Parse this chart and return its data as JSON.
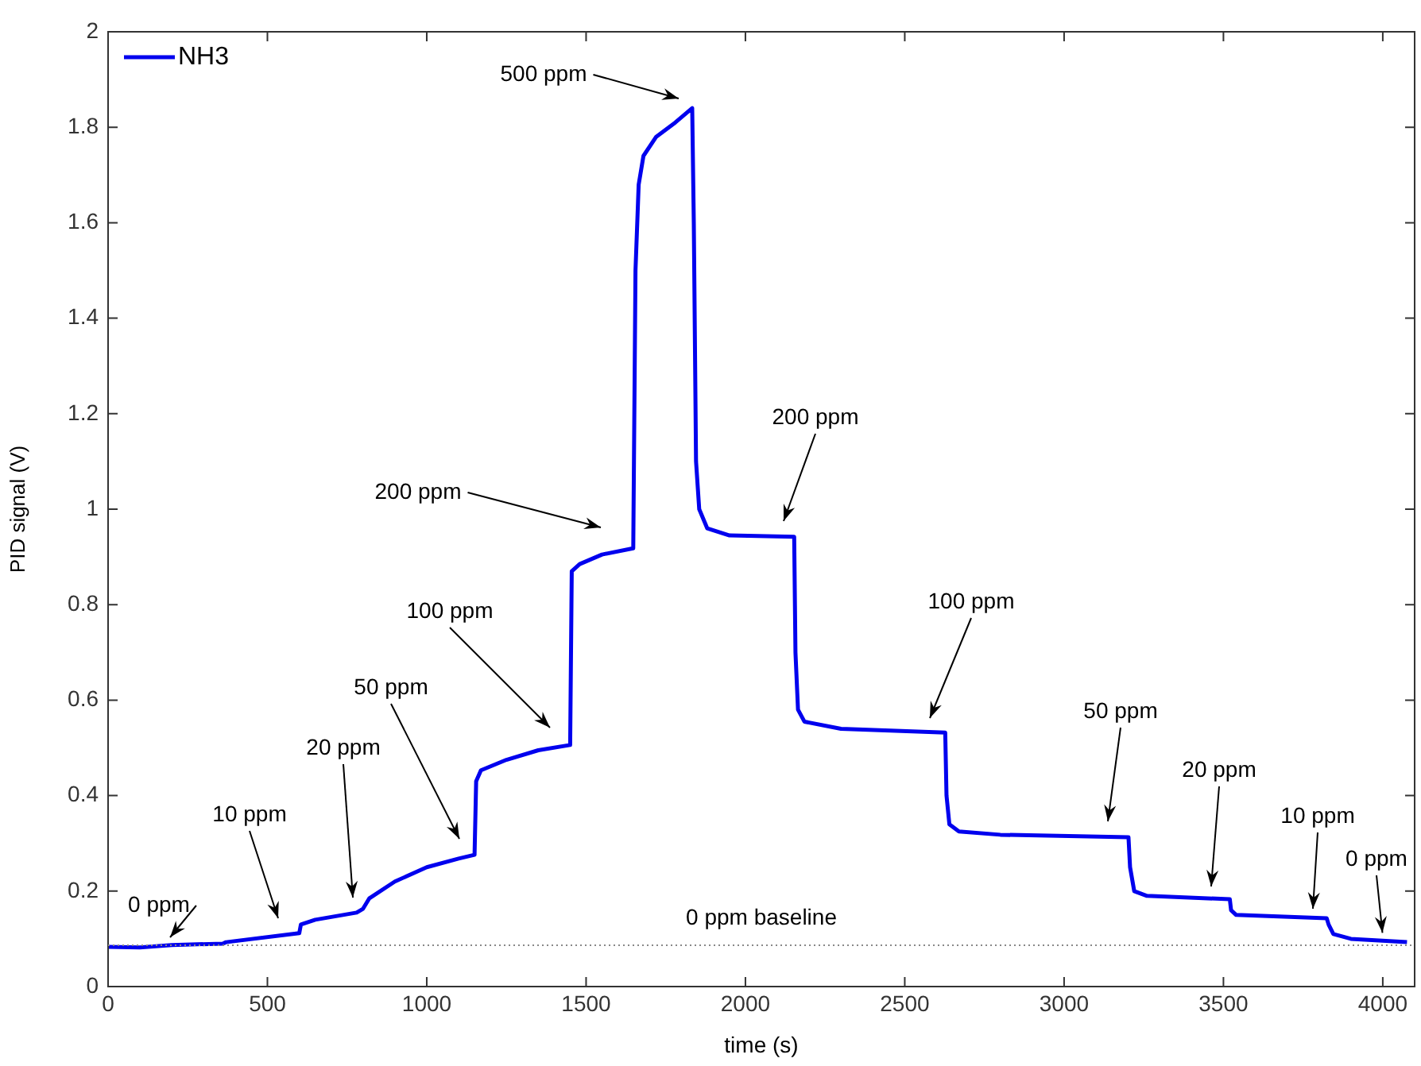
{
  "chart_data": {
    "type": "line",
    "xlabel": "time (s)",
    "ylabel": "PID signal (V)",
    "xlim": [
      0,
      4100
    ],
    "xticks": [
      0,
      500,
      1000,
      1500,
      2000,
      2500,
      3000,
      3500,
      4000
    ],
    "ylim": [
      0,
      2
    ],
    "yticks": [
      0,
      0.2,
      0.4,
      0.6,
      0.8,
      1,
      1.2,
      1.4,
      1.6,
      1.8,
      2
    ],
    "grid": false,
    "legend": "top left",
    "marker": "none",
    "line_style": "solid",
    "series": [
      {
        "name": "NH3",
        "color": "#0000ee",
        "x": [
          0,
          100,
          200,
          360,
          370,
          600,
          605,
          650,
          780,
          800,
          820,
          900,
          1000,
          1100,
          1150,
          1155,
          1170,
          1250,
          1350,
          1450,
          1455,
          1480,
          1550,
          1648,
          1655,
          1665,
          1680,
          1720,
          1780,
          1833,
          1838,
          1845,
          1855,
          1880,
          1950,
          2153,
          2157,
          2165,
          2185,
          2300,
          2627,
          2631,
          2640,
          2670,
          2800,
          3202,
          3207,
          3220,
          3260,
          3520,
          3524,
          3540,
          3824,
          3830,
          3845,
          3900,
          4076
        ],
        "values": [
          0.083,
          0.082,
          0.087,
          0.09,
          0.093,
          0.112,
          0.13,
          0.14,
          0.155,
          0.163,
          0.185,
          0.22,
          0.25,
          0.268,
          0.276,
          0.43,
          0.453,
          0.475,
          0.495,
          0.506,
          0.87,
          0.885,
          0.905,
          0.918,
          1.5,
          1.68,
          1.74,
          1.78,
          1.81,
          1.84,
          1.6,
          1.1,
          1.0,
          0.96,
          0.945,
          0.942,
          0.7,
          0.58,
          0.555,
          0.54,
          0.532,
          0.4,
          0.34,
          0.325,
          0.318,
          0.313,
          0.25,
          0.2,
          0.19,
          0.183,
          0.16,
          0.15,
          0.143,
          0.13,
          0.11,
          0.1,
          0.093
        ]
      }
    ],
    "ref_lines": [
      {
        "axis": "y",
        "value": 0.0865,
        "label": "0 ppm baseline",
        "color": "#888888",
        "line_style": "dotted"
      }
    ],
    "annotations": [
      "0 ppm",
      "10 ppm",
      "20 ppm",
      "50 ppm",
      "100 ppm",
      "200 ppm",
      "500 ppm",
      "200 ppm",
      "100 ppm",
      "50 ppm",
      "20 ppm",
      "10 ppm",
      {
        "text": "0 ppm",
        "x": 4001,
        "y": 0.096
      }
    ]
  }
}
